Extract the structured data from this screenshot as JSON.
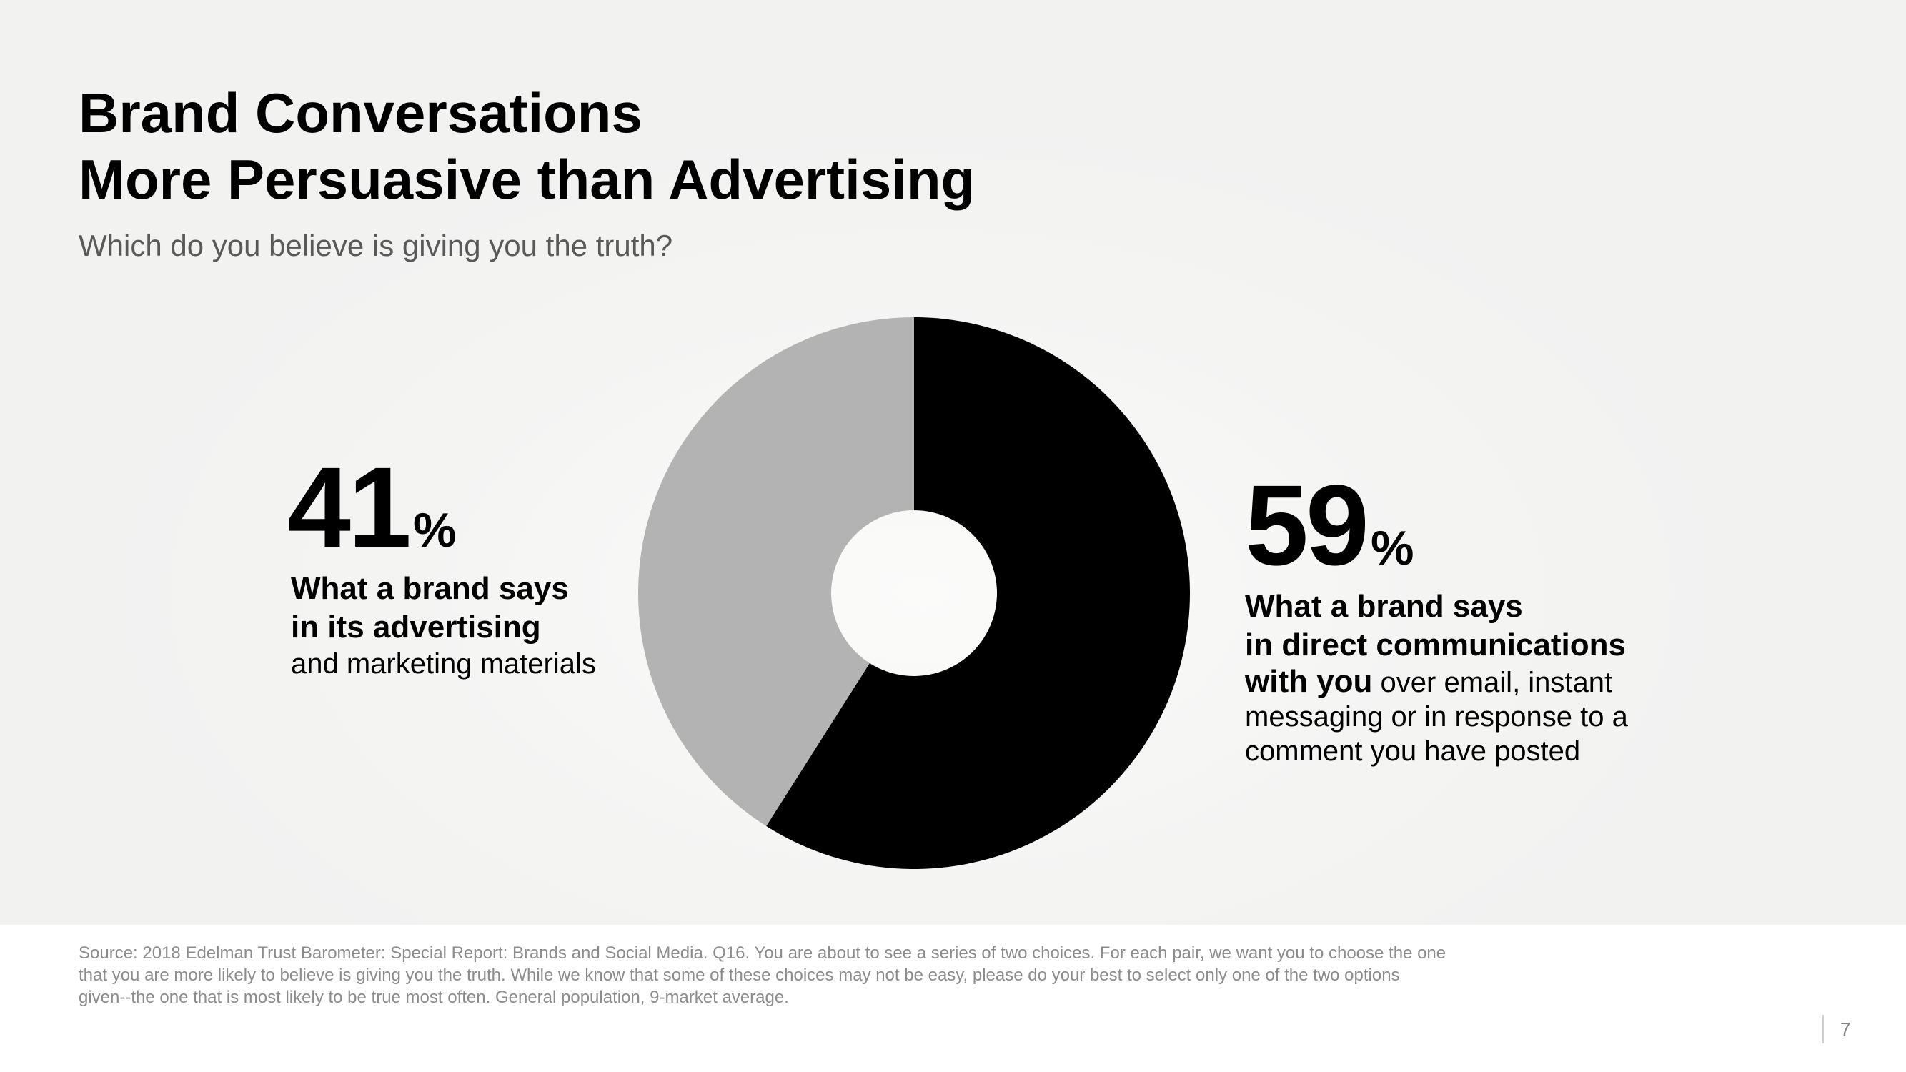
{
  "title": {
    "line1": "Brand Conversations",
    "line2": "More Persuasive than Advertising"
  },
  "subtitle": "Which do you believe is giving you the truth?",
  "chart_data": {
    "type": "pie",
    "title": "",
    "labels": [
      "What a brand says in its advertising and marketing materials",
      "What a brand says in direct communications with you over email, instant messaging or in response to a comment you have posted"
    ],
    "values": [
      41,
      59
    ],
    "colors": [
      "#b3b3b3",
      "#000000"
    ],
    "unit": "%",
    "legend": "none"
  },
  "left_stat": {
    "value": "41",
    "unit": "%",
    "bold_line1": "What a brand says",
    "bold_line2": "in its advertising",
    "regular": "and marketing materials"
  },
  "right_stat": {
    "value": "59",
    "unit": "%",
    "bold_line1": "What a brand says",
    "bold_line2": "in direct communications",
    "bold_line3": "with you",
    "regular_inline": " over email, instant",
    "regular_line2": "messaging or in response to a",
    "regular_line3": "comment you have posted"
  },
  "footer": {
    "source": "Source: 2018 Edelman Trust Barometer: Special Report: Brands and Social Media. Q16. You are about to see a series of two choices. For each pair, we want you to choose the one that you are more likely to believe is giving you the truth. While we know that some of these choices may not be easy, please do your best to select only one of the two options given--the one that is most likely to be true most often. General population, 9-market average."
  },
  "page_number": "7"
}
